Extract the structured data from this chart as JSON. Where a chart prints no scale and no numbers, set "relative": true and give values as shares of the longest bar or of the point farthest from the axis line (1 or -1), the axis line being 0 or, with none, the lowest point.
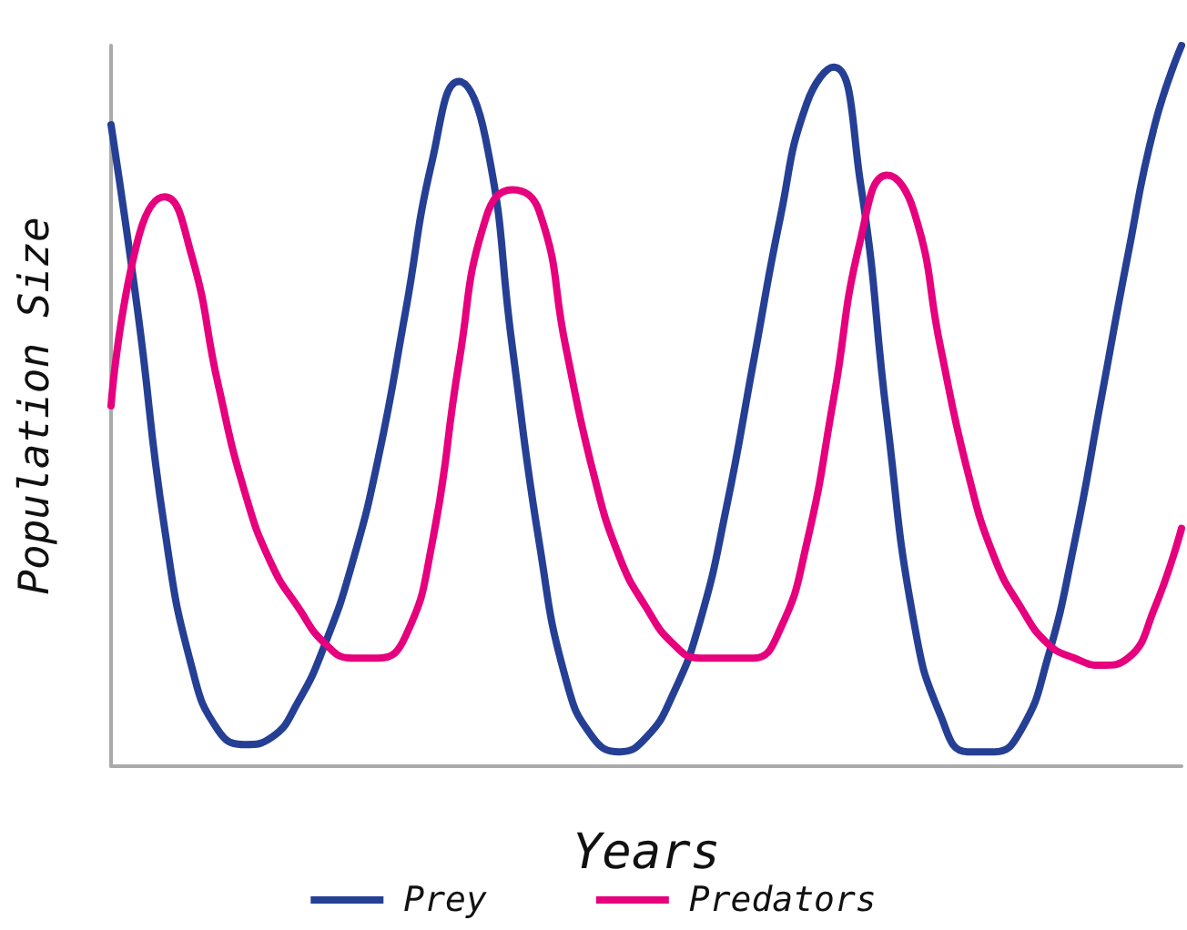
{
  "chart_data": {
    "type": "line",
    "relative": true,
    "xlabel": "Years",
    "ylabel": "Population Size",
    "legend": "bottom",
    "grid": false,
    "marker": "none",
    "line_style": "solid",
    "categories": [
      null,
      null,
      null,
      null,
      null,
      null,
      null,
      null,
      null,
      null,
      null,
      null,
      null,
      null,
      null,
      null,
      null,
      null,
      null,
      null,
      null,
      null,
      null,
      null,
      null,
      null,
      null,
      null,
      null,
      null,
      null,
      null,
      null,
      null,
      null,
      null,
      null,
      null,
      null,
      null,
      null
    ],
    "series": [
      {
        "name": "Prey",
        "color": "#253f94",
        "values": [
          0.89,
          0.63,
          0.33,
          0.14,
          0.05,
          0.03,
          0.04,
          0.09,
          0.17,
          0.28,
          0.43,
          0.63,
          0.84,
          0.95,
          0.87,
          0.58,
          0.31,
          0.12,
          0.04,
          0.02,
          0.04,
          0.1,
          0.2,
          0.36,
          0.56,
          0.76,
          0.92,
          0.97,
          0.81,
          0.48,
          0.2,
          0.07,
          0.02,
          0.02,
          0.05,
          0.15,
          0.31,
          0.51,
          0.71,
          0.89,
          1.0
        ]
      },
      {
        "name": "Predators",
        "color": "#e6007e",
        "values": [
          0.5,
          0.73,
          0.79,
          0.71,
          0.53,
          0.38,
          0.28,
          0.22,
          0.17,
          0.15,
          0.15,
          0.18,
          0.31,
          0.56,
          0.76,
          0.8,
          0.77,
          0.58,
          0.41,
          0.29,
          0.22,
          0.17,
          0.15,
          0.15,
          0.15,
          0.19,
          0.31,
          0.51,
          0.73,
          0.82,
          0.77,
          0.58,
          0.41,
          0.29,
          0.22,
          0.17,
          0.15,
          0.14,
          0.15,
          0.22,
          0.33
        ]
      }
    ]
  }
}
